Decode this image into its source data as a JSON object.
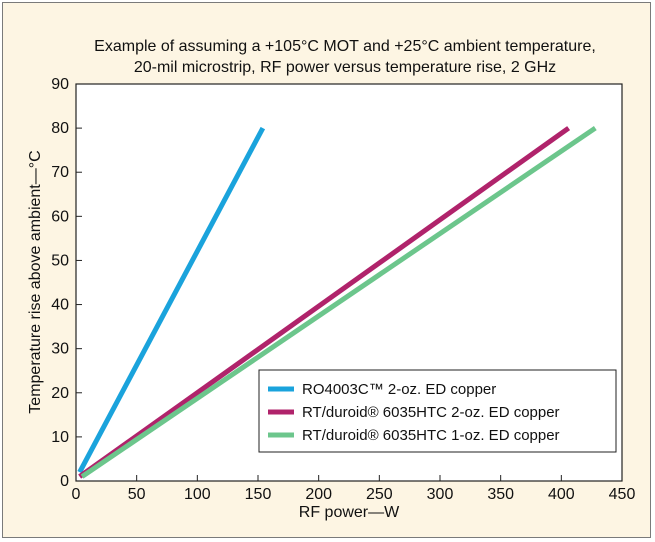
{
  "chart_data": {
    "type": "line",
    "title_lines": [
      "Example of assuming a +105°C MOT and +25°C ambient temperature,",
      "20-mil microstrip, RF power versus temperature rise, 2 GHz"
    ],
    "xlabel": "RF power—W",
    "ylabel": "Temperature rise above ambient—°C",
    "xlim": [
      0,
      450
    ],
    "ylim": [
      0,
      90
    ],
    "x_ticks": [
      0,
      50,
      100,
      150,
      200,
      250,
      300,
      350,
      400,
      450
    ],
    "y_ticks": [
      0,
      10,
      20,
      30,
      40,
      50,
      60,
      70,
      80,
      90
    ],
    "grid": false,
    "legend_position": "bottom-right",
    "series": [
      {
        "name": "RO4003C™ 2-oz. ED copper",
        "color": "#1aa3dc",
        "x": [
          3,
          154
        ],
        "y": [
          2,
          80
        ]
      },
      {
        "name": "RT/duroid® 6035HTC 2-oz. ED copper",
        "color": "#b0236b",
        "x": [
          3,
          406
        ],
        "y": [
          1,
          80
        ]
      },
      {
        "name": "RT/duroid® 6035HTC 1-oz. ED copper",
        "color": "#6cc68c",
        "x": [
          5,
          428
        ],
        "y": [
          1,
          80
        ]
      }
    ]
  }
}
